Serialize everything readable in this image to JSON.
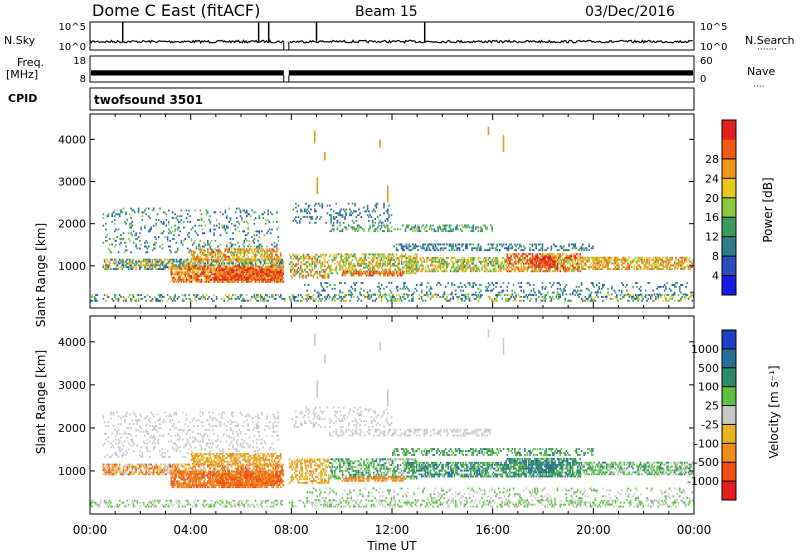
{
  "header": {
    "station": "Dome C East (fitACF)",
    "beam": "Beam 15",
    "date": "03/Dec/2016"
  },
  "left_labels": {
    "nsky": "N.Sky",
    "freq_top": "Freq.",
    "freq_bottom": "[MHz]",
    "cpid": "CPID"
  },
  "right_labels": {
    "nsearch": "N.Search",
    "nave": "Nave",
    "nsearch_dots": "·······",
    "nave_dots": "····"
  },
  "cpid_panel": {
    "label": "twofsound 3501"
  },
  "power_panel": {
    "ylabel": "Slant Range [km]",
    "colorbar_label": "Power [dB]"
  },
  "velocity_panel": {
    "ylabel": "Slant Range [km]",
    "colorbar_label": "Velocity [m s⁻¹]"
  },
  "chart_data": [
    {
      "type": "line",
      "name": "noise-sky-and-search",
      "yticks": [
        "10^5",
        "10^0"
      ],
      "right_yticks": [
        "10^5",
        "10^0"
      ],
      "baseline_level": 0.3,
      "gap_utc": [
        7.7,
        7.9
      ],
      "spikes_utc": [
        1.3,
        6.7,
        7.1,
        9.0,
        13.3
      ]
    },
    {
      "type": "line",
      "name": "frequency-and-nave",
      "yticks": [
        18,
        8
      ],
      "right_yticks": [
        60,
        0
      ],
      "ylim": [
        8,
        18
      ],
      "band_mhz": [
        10.5,
        12.5
      ],
      "gap_utc": [
        7.7,
        7.9
      ]
    },
    {
      "type": "heatmap",
      "name": "power",
      "xlim": [
        0,
        24
      ],
      "ylim": [
        0,
        4600
      ],
      "xticks": [
        "00:00",
        "04:00",
        "08:00",
        "12:00",
        "16:00",
        "20:00",
        "00:00"
      ],
      "yticks": [
        1000,
        2000,
        3000,
        4000
      ],
      "colorbar_ticks": [
        4,
        8,
        12,
        16,
        20,
        24,
        28
      ],
      "colorbar_range": [
        0,
        32
      ],
      "colors": [
        "#1a1ae6",
        "#2a4fb8",
        "#2f7d8a",
        "#3a9a5c",
        "#8cc840",
        "#e6c81e",
        "#f0961e",
        "#f05a14",
        "#e61e1e"
      ]
    },
    {
      "type": "heatmap",
      "name": "velocity",
      "xlim": [
        0,
        24
      ],
      "ylim": [
        0,
        4600
      ],
      "xticks": [
        "00:00",
        "04:00",
        "08:00",
        "12:00",
        "16:00",
        "20:00",
        "00:00"
      ],
      "xlabel": "Time UT",
      "yticks": [
        1000,
        2000,
        3000,
        4000
      ],
      "colorbar_ticks": [
        "1000",
        "500",
        "100",
        "25",
        "-25",
        "-100",
        "-500",
        "-1000"
      ],
      "colors": [
        "#1f3fc4",
        "#2a6e9a",
        "#2e8a6a",
        "#5cc040",
        "#c8c8c8",
        "#e8b41e",
        "#f08c1e",
        "#f05014",
        "#e61e1e"
      ]
    }
  ]
}
